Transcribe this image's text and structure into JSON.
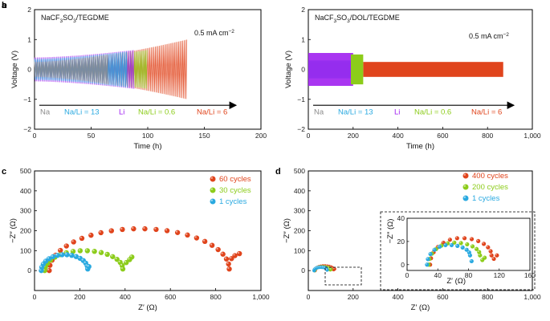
{
  "figure": {
    "colors": {
      "na": "#8c8c8c",
      "li": "#a020f0",
      "cyan": "#29a9e0",
      "green": "#8ccc1a",
      "red": "#e0441c",
      "axis": "#000000"
    }
  },
  "chart_data": [
    {
      "panel": "a",
      "type": "line",
      "title": "NaCF3SO3/TEGDME",
      "xlabel": "Time (h)",
      "ylabel": "Voltage (V)",
      "xlim": [
        0,
        200
      ],
      "ylim": [
        -2,
        2
      ],
      "xticks": [
        "0",
        "50",
        "100",
        "150",
        "200"
      ],
      "yticks": [
        "-2",
        "-1",
        "0",
        "1",
        "2"
      ],
      "annotation": "0.5 mA cm⁻²",
      "series": [
        {
          "name": "Na",
          "color": "#8c8c8c",
          "x_range": [
            0,
            65
          ],
          "amplitude_range": [
            0.25,
            0.5
          ]
        },
        {
          "name": "Na/Li = 13",
          "color": "#29a9e0",
          "x_range": [
            0,
            82
          ],
          "amplitude_range": [
            0.35,
            0.6
          ]
        },
        {
          "name": "Li",
          "color": "#a020f0",
          "x_range": [
            0,
            88
          ],
          "amplitude_range": [
            0.4,
            0.65
          ]
        },
        {
          "name": "Na/Li = 0.6",
          "color": "#8ccc1a",
          "x_range": [
            0,
            100
          ],
          "amplitude_range": [
            0.3,
            0.65
          ]
        },
        {
          "name": "Na/Li = 6",
          "color": "#e0441c",
          "x_range": [
            0,
            135
          ],
          "amplitude_range": [
            0.25,
            1.0
          ]
        }
      ]
    },
    {
      "panel": "b",
      "type": "line",
      "title": "NaCF3SO3/DOL/TEGDME",
      "xlabel": "Time (h)",
      "ylabel": "Voltage (V)",
      "xlim": [
        0,
        1000
      ],
      "ylim": [
        -2,
        2
      ],
      "xticks": [
        "0",
        "200",
        "400",
        "600",
        "800",
        "1,000"
      ],
      "yticks": [
        "-2",
        "-1",
        "0",
        "1",
        "2"
      ],
      "annotation": "0.5 mA cm⁻²",
      "series": [
        {
          "name": "Na",
          "color": "#8c8c8c",
          "x_range": [
            0,
            190
          ],
          "amplitude_range": [
            0.2,
            0.25
          ]
        },
        {
          "name": "Na/Li = 13",
          "color": "#29a9e0",
          "x_range": [
            0,
            195
          ],
          "amplitude_range": [
            0.3,
            0.3
          ]
        },
        {
          "name": "Li",
          "color": "#a020f0",
          "x_range": [
            0,
            200
          ],
          "amplitude_range": [
            0.45,
            0.55
          ]
        },
        {
          "name": "Na/Li = 0.6",
          "color": "#8ccc1a",
          "x_range": [
            190,
            245
          ],
          "amplitude_range": [
            0.5,
            0.5
          ]
        },
        {
          "name": "Na/Li = 6",
          "color": "#e0441c",
          "x_range": [
            245,
            870
          ],
          "amplitude_range": [
            0.2,
            0.25
          ]
        }
      ]
    },
    {
      "panel": "c",
      "type": "scatter",
      "xlabel": "Z′ (Ω)",
      "ylabel": "−Z″ (Ω)",
      "xlim": [
        0,
        1000
      ],
      "ylim": [
        -100,
        500
      ],
      "xticks": [
        "0",
        "200",
        "400",
        "600",
        "800",
        "1,000"
      ],
      "yticks": [
        "0",
        "100",
        "200",
        "300",
        "400",
        "500"
      ],
      "series": [
        {
          "name": "60 cycles",
          "color": "#e0441c",
          "arc": {
            "x0": 65,
            "x1": 860,
            "height": 210,
            "n": 26
          },
          "tail": [
            [
              870,
              60
            ],
            [
              885,
              75
            ],
            [
              905,
              85
            ]
          ]
        },
        {
          "name": "30 cycles",
          "color": "#8ccc1a",
          "arc": {
            "x0": 45,
            "x1": 390,
            "height": 100,
            "n": 18
          },
          "tail": [
            [
              405,
              40
            ],
            [
              420,
              55
            ],
            [
              430,
              68
            ]
          ]
        },
        {
          "name": "1 cycles",
          "color": "#29a9e0",
          "arc": {
            "x0": 30,
            "x1": 235,
            "height": 80,
            "n": 16
          },
          "tail": [
            [
              240,
              20
            ]
          ]
        }
      ]
    },
    {
      "panel": "d",
      "type": "scatter",
      "xlabel": "Z′ (Ω)",
      "ylabel": "−Z″ (Ω)",
      "xlim": [
        0,
        1000
      ],
      "ylim": [
        -100,
        500
      ],
      "xticks": [
        "0",
        "200",
        "400",
        "600",
        "800",
        "1,000"
      ],
      "yticks": [
        "0",
        "100",
        "200",
        "300",
        "400",
        "500"
      ],
      "inset": {
        "xlim": [
          0,
          160
        ],
        "ylim": [
          -5,
          40
        ],
        "xticks": [
          "0",
          "40",
          "80",
          "120",
          "160"
        ],
        "yticks": [
          "0",
          "20",
          "40"
        ],
        "xlabel": "Z′ (Ω)",
        "ylabel": "−Z″ (Ω)"
      },
      "series": [
        {
          "name": "400 cycles",
          "color": "#e0441c",
          "arc": {
            "x0": 30,
            "x1": 110,
            "height": 23,
            "n": 14
          },
          "tail": [
            [
              113,
              5
            ],
            [
              117,
              8
            ]
          ]
        },
        {
          "name": "200 cycles",
          "color": "#8ccc1a",
          "arc": {
            "x0": 28,
            "x1": 95,
            "height": 19,
            "n": 13
          },
          "tail": [
            [
              98,
              4
            ],
            [
              101,
              6
            ]
          ]
        },
        {
          "name": "1 cycles",
          "color": "#29a9e0",
          "arc": {
            "x0": 26,
            "x1": 82,
            "height": 17,
            "n": 12
          },
          "tail": [
            [
              84,
              3
            ]
          ]
        }
      ]
    }
  ],
  "labels": {
    "panel_a": "a",
    "panel_b": "b",
    "panel_c": "c",
    "panel_d": "d",
    "title_a_pre": "NaCF",
    "title_a_sub": "3",
    "title_a_post": "SO",
    "title_a_sub2": "3",
    "title_a_tail": "/TEGDME",
    "title_b_pre": "NaCF",
    "title_b_sub": "3",
    "title_b_post": "SO",
    "title_b_sub2": "3",
    "title_b_tail": "/DOL/TEGDME",
    "current_pre": "0.5 mA cm",
    "current_sup": "−2"
  }
}
